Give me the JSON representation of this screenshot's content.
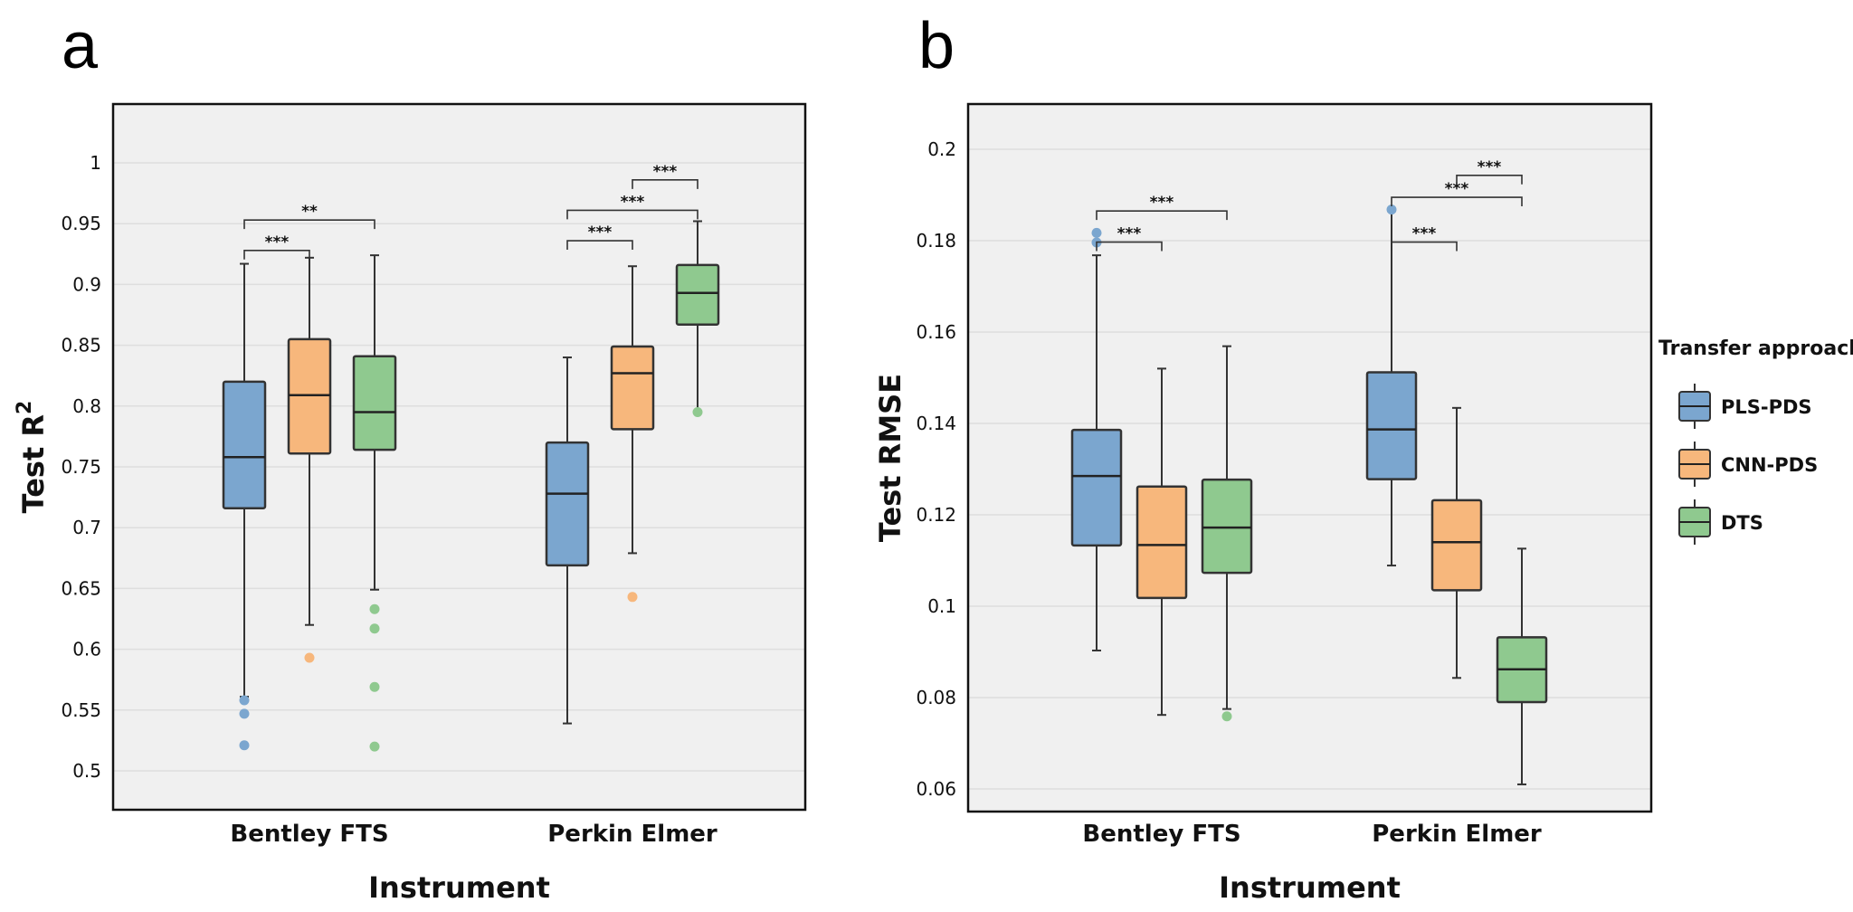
{
  "colors": {
    "PLS-PDS": "#7ba6cf",
    "CNN-PDS": "#f7b77c",
    "DTS": "#8fc98f",
    "plot_bg": "#f0f0f0",
    "grid": "#dedede"
  },
  "legend": {
    "title": "Transfer approach",
    "entries": [
      "PLS-PDS",
      "CNN-PDS",
      "DTS"
    ]
  },
  "chart_data": [
    {
      "panel": "a",
      "type": "box",
      "xlabel": "Instrument",
      "ylabel": "Test R",
      "ylabel_superscript": "2",
      "ylim": [
        0.5,
        1.0
      ],
      "yticks": [
        {
          "value": 0.5,
          "label": "0.5"
        },
        {
          "value": 0.55,
          "label": "0.55"
        },
        {
          "value": 0.6,
          "label": "0.6"
        },
        {
          "value": 0.65,
          "label": "0.65"
        },
        {
          "value": 0.7,
          "label": "0.7"
        },
        {
          "value": 0.75,
          "label": "0.75"
        },
        {
          "value": 0.8,
          "label": "0.8"
        },
        {
          "value": 0.85,
          "label": "0.85"
        },
        {
          "value": 0.9,
          "label": "0.9"
        },
        {
          "value": 0.95,
          "label": "0.95"
        },
        {
          "value": 1.0,
          "label": "1"
        }
      ],
      "categories": [
        "Bentley FTS",
        "Perkin Elmer"
      ],
      "series": [
        {
          "name": "PLS-PDS",
          "boxes": [
            {
              "whisker_low": 0.561,
              "q1": 0.716,
              "median": 0.758,
              "q3": 0.82,
              "whisker_high": 0.917,
              "outliers": [
                0.558,
                0.547,
                0.521
              ]
            },
            {
              "whisker_low": 0.539,
              "q1": 0.669,
              "median": 0.728,
              "q3": 0.77,
              "whisker_high": 0.84,
              "outliers": []
            }
          ]
        },
        {
          "name": "CNN-PDS",
          "boxes": [
            {
              "whisker_low": 0.62,
              "q1": 0.761,
              "median": 0.809,
              "q3": 0.855,
              "whisker_high": 0.922,
              "outliers": [
                0.593
              ]
            },
            {
              "whisker_low": 0.679,
              "q1": 0.781,
              "median": 0.827,
              "q3": 0.849,
              "whisker_high": 0.915,
              "outliers": [
                0.643
              ]
            }
          ]
        },
        {
          "name": "DTS",
          "boxes": [
            {
              "whisker_low": 0.649,
              "q1": 0.764,
              "median": 0.795,
              "q3": 0.841,
              "whisker_high": 0.924,
              "outliers": [
                0.633,
                0.617,
                0.569,
                0.52
              ]
            },
            {
              "whisker_low": 0.796,
              "q1": 0.867,
              "median": 0.893,
              "q3": 0.916,
              "whisker_high": 0.952,
              "outliers": [
                0.795
              ]
            }
          ]
        }
      ],
      "significance": [
        {
          "category": 0,
          "from": "PLS-PDS",
          "to": "CNN-PDS",
          "label": "***",
          "y": 0.928
        },
        {
          "category": 0,
          "from": "PLS-PDS",
          "to": "DTS",
          "label": "**",
          "y": 0.953
        },
        {
          "category": 1,
          "from": "PLS-PDS",
          "to": "CNN-PDS",
          "label": "***",
          "y": 0.936
        },
        {
          "category": 1,
          "from": "PLS-PDS",
          "to": "DTS",
          "label": "***",
          "y": 0.961
        },
        {
          "category": 1,
          "from": "CNN-PDS",
          "to": "DTS",
          "label": "***",
          "y": 0.986
        }
      ],
      "grid": true
    },
    {
      "panel": "b",
      "type": "box",
      "xlabel": "Instrument",
      "ylabel": "Test RMSE",
      "ylim": [
        0.055,
        0.21
      ],
      "yticks": [
        {
          "value": 0.06,
          "label": "0.06"
        },
        {
          "value": 0.08,
          "label": "0.08"
        },
        {
          "value": 0.1,
          "label": "0.1"
        },
        {
          "value": 0.12,
          "label": "0.12"
        },
        {
          "value": 0.14,
          "label": "0.14"
        },
        {
          "value": 0.16,
          "label": "0.16"
        },
        {
          "value": 0.18,
          "label": "0.18"
        },
        {
          "value": 0.2,
          "label": "0.2"
        }
      ],
      "categories": [
        "Bentley FTS",
        "Perkin Elmer"
      ],
      "series": [
        {
          "name": "PLS-PDS",
          "boxes": [
            {
              "whisker_low": 0.0903,
              "q1": 0.1133,
              "median": 0.1285,
              "q3": 0.1386,
              "whisker_high": 0.1768,
              "outliers": [
                0.1817,
                0.1796
              ]
            },
            {
              "whisker_low": 0.1089,
              "q1": 0.1278,
              "median": 0.1387,
              "q3": 0.1512,
              "whisker_high": 0.1865,
              "outliers": [
                0.1868
              ]
            }
          ]
        },
        {
          "name": "CNN-PDS",
          "boxes": [
            {
              "whisker_low": 0.0762,
              "q1": 0.1018,
              "median": 0.1134,
              "q3": 0.1262,
              "whisker_high": 0.152,
              "outliers": []
            },
            {
              "whisker_low": 0.0843,
              "q1": 0.1035,
              "median": 0.114,
              "q3": 0.1232,
              "whisker_high": 0.1434,
              "outliers": []
            }
          ]
        },
        {
          "name": "DTS",
          "boxes": [
            {
              "whisker_low": 0.0775,
              "q1": 0.1073,
              "median": 0.1172,
              "q3": 0.1277,
              "whisker_high": 0.1569,
              "outliers": [
                0.0759
              ]
            },
            {
              "whisker_low": 0.061,
              "q1": 0.079,
              "median": 0.0862,
              "q3": 0.0932,
              "whisker_high": 0.1126,
              "outliers": []
            }
          ]
        }
      ],
      "significance": [
        {
          "category": 0,
          "from": "PLS-PDS",
          "to": "CNN-PDS",
          "label": "***",
          "y": 0.1797
        },
        {
          "category": 0,
          "from": "PLS-PDS",
          "to": "DTS",
          "label": "***",
          "y": 0.1865
        },
        {
          "category": 1,
          "from": "PLS-PDS",
          "to": "CNN-PDS",
          "label": "***",
          "y": 0.1797
        },
        {
          "category": 1,
          "from": "PLS-PDS",
          "to": "DTS",
          "label": "***",
          "y": 0.1895
        },
        {
          "category": 1,
          "from": "CNN-PDS",
          "to": "DTS",
          "label": "***",
          "y": 0.1943
        }
      ],
      "grid": true
    }
  ]
}
